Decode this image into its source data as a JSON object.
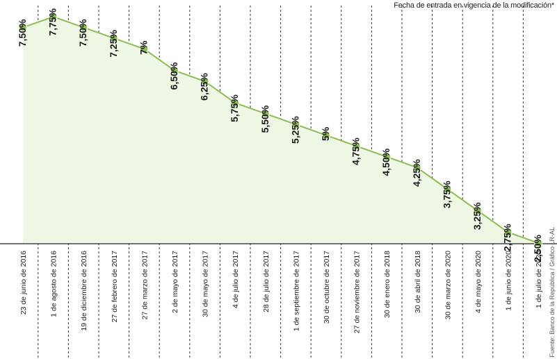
{
  "subtitle": "Fecha de entrada en vigencia de la modificación*",
  "source": "Fuente: Banco de la República / Gráfico LR-AL",
  "colors": {
    "line": "#8cbd52",
    "fill": "#eef6e4",
    "marker": "#8cbd52",
    "gridline": "#333333",
    "text": "#1a1a1a"
  },
  "chart_data": {
    "type": "area",
    "categories": [
      "23 de junio de 2016",
      "1 de agosto de 2016",
      "19 de diciembre de 2016",
      "27 de febrero de 2017",
      "27 de marzo de 2017",
      "2 de mayo de 2017",
      "30 de mayo de 2017",
      "4 de julio de 2017",
      "28 de julio de 2017",
      "1 de septiembre de 2017",
      "30 de octubre de 2017",
      "27 de noviembre de 2017",
      "30 de enero de 2018",
      "30 de abril de 2018",
      "30 de marzo de 2020",
      "4 de mayo de 2020",
      "1 de junio de 2020",
      "1 de julio de 2020"
    ],
    "values": [
      7.5,
      7.75,
      7.5,
      7.25,
      7.0,
      6.5,
      6.25,
      5.75,
      5.5,
      5.25,
      5.0,
      4.75,
      4.5,
      4.25,
      3.75,
      3.25,
      2.75,
      2.5
    ],
    "data_labels": [
      "7,50%",
      "7,75%",
      "7,50%",
      "7,25%",
      "7%",
      "6,50%",
      "6,25%",
      "5,75%",
      "5,50%",
      "5,25%",
      "5%",
      "4,75%",
      "4,50%",
      "4,25%",
      "3,75%",
      "3,25%",
      "2,75%",
      "2,50%"
    ],
    "ylim": [
      2.5,
      7.75
    ],
    "grid": "vertical-dashed"
  }
}
